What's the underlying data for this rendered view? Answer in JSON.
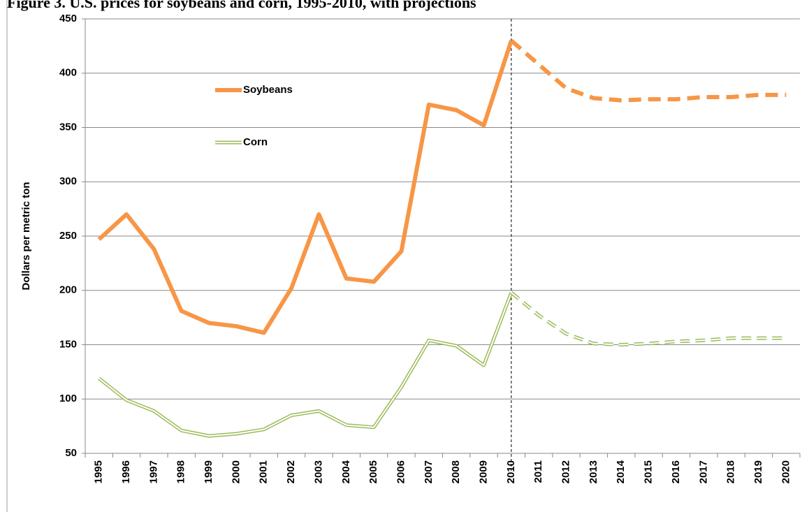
{
  "chart_data": {
    "type": "line",
    "title": "Figure 3. U.S. prices for soybeans and corn, 1995-2010, with projections",
    "y_label": "Dollars per metric ton",
    "categories": [
      "1995",
      "1996",
      "1997",
      "1998",
      "1999",
      "2000",
      "2001",
      "2002",
      "2003",
      "2004",
      "2005",
      "2006",
      "2007",
      "2008",
      "2009",
      "2010",
      "2011",
      "2012",
      "2013",
      "2014",
      "2015",
      "2016",
      "2017",
      "2018",
      "2019",
      "2020"
    ],
    "series": [
      {
        "name": "Soybeans",
        "color": "#f79646",
        "values": [
          247,
          270,
          238,
          181,
          170,
          167,
          161,
          202,
          270,
          211,
          208,
          236,
          371,
          366,
          352,
          430,
          408,
          386,
          377,
          375,
          376,
          376,
          378,
          378,
          380,
          380
        ]
      },
      {
        "name": "Corn",
        "color": "#9bbb59",
        "values": [
          119,
          99,
          89,
          71,
          66,
          68,
          72,
          85,
          89,
          76,
          74,
          111,
          154,
          149,
          131,
          198,
          177,
          160,
          151,
          150,
          151,
          153,
          154,
          156,
          156,
          156
        ]
      }
    ],
    "projection_from": "2010",
    "ylim": [
      50,
      450
    ],
    "yticks": [
      50,
      100,
      150,
      200,
      250,
      300,
      350,
      400,
      450
    ],
    "grid": true,
    "legend": "upper left"
  }
}
